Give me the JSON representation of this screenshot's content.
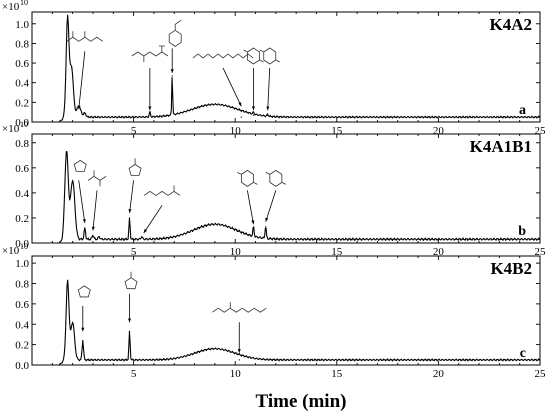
{
  "chart_data": [
    {
      "type": "line",
      "panel_name": "K4A2",
      "panel_letter": "a",
      "y_exponent_label": "×10",
      "y_exponent": "10",
      "xlim": [
        0,
        25
      ],
      "ylim": [
        0,
        1.12
      ],
      "x_ticks": [
        5,
        10,
        15,
        20,
        25
      ],
      "y_ticks": [
        "0.0",
        "0.2",
        "0.4",
        "0.6",
        "0.8",
        "1.0"
      ],
      "y_tick_values": [
        0.0,
        0.2,
        0.4,
        0.6,
        0.8,
        1.0
      ],
      "baseline": 0.05,
      "hump": {
        "center": 9.0,
        "width": 1.6,
        "height": 0.13
      },
      "peaks": [
        {
          "x": 1.75,
          "y": 1.05,
          "w": 0.1
        },
        {
          "x": 1.95,
          "y": 0.55,
          "w": 0.12
        },
        {
          "x": 2.3,
          "y": 0.16,
          "w": 0.15
        },
        {
          "x": 2.6,
          "y": 0.09,
          "w": 0.08
        },
        {
          "x": 3.3,
          "y": 0.05,
          "w": 0.3
        },
        {
          "x": 5.8,
          "y": 0.1,
          "w": 0.04
        },
        {
          "x": 6.9,
          "y": 0.47,
          "w": 0.03
        },
        {
          "x": 10.3,
          "y": 0.05,
          "w": 0.05
        },
        {
          "x": 10.9,
          "y": 0.07,
          "w": 0.04
        },
        {
          "x": 11.6,
          "y": 0.07,
          "w": 0.04
        }
      ],
      "annotations": [
        {
          "mol": "diketone",
          "arrow_from": [
            2.6,
            0.72
          ],
          "arrow_to": [
            2.3,
            0.13
          ]
        },
        {
          "mol": "branched-alkene",
          "arrow_from": [
            5.8,
            0.55
          ],
          "arrow_to": [
            5.8,
            0.12
          ]
        },
        {
          "mol": "styrene",
          "arrow_from": [
            6.9,
            0.75
          ],
          "arrow_to": [
            6.9,
            0.5
          ]
        },
        {
          "mol": "long-chain",
          "arrow_from": [
            9.4,
            0.55
          ],
          "arrow_to": [
            10.3,
            0.16
          ]
        },
        {
          "mol": "lactide",
          "arrow_from": [
            10.9,
            0.55
          ],
          "arrow_to": [
            10.9,
            0.12
          ]
        },
        {
          "mol": "lactide",
          "arrow_from": [
            11.7,
            0.55
          ],
          "arrow_to": [
            11.6,
            0.12
          ]
        }
      ]
    },
    {
      "type": "line",
      "panel_name": "K4A1B1",
      "panel_letter": "b",
      "y_exponent_label": "×10",
      "y_exponent": "10",
      "xlim": [
        0,
        25
      ],
      "ylim": [
        0,
        0.87
      ],
      "x_ticks": [
        5,
        10,
        15,
        20,
        25
      ],
      "y_ticks": [
        "0.0",
        "0.2",
        "0.4",
        "0.6",
        "0.8"
      ],
      "y_tick_values": [
        0.0,
        0.2,
        0.4,
        0.6,
        0.8
      ],
      "baseline": 0.03,
      "hump": {
        "center": 9.0,
        "width": 1.5,
        "height": 0.12
      },
      "peaks": [
        {
          "x": 1.7,
          "y": 0.73,
          "w": 0.12
        },
        {
          "x": 2.0,
          "y": 0.5,
          "w": 0.15
        },
        {
          "x": 2.6,
          "y": 0.12,
          "w": 0.05
        },
        {
          "x": 3.0,
          "y": 0.06,
          "w": 0.06
        },
        {
          "x": 3.3,
          "y": 0.05,
          "w": 0.06
        },
        {
          "x": 4.8,
          "y": 0.2,
          "w": 0.04
        },
        {
          "x": 5.4,
          "y": 0.05,
          "w": 0.05
        },
        {
          "x": 10.9,
          "y": 0.11,
          "w": 0.04
        },
        {
          "x": 11.5,
          "y": 0.13,
          "w": 0.04
        }
      ],
      "annotations": [
        {
          "mol": "thf-ring",
          "arrow_from": [
            2.3,
            0.5
          ],
          "arrow_to": [
            2.6,
            0.16
          ]
        },
        {
          "mol": "hydroxy-acid",
          "arrow_from": [
            3.2,
            0.42
          ],
          "arrow_to": [
            3.0,
            0.1
          ]
        },
        {
          "mol": "cyclopentanone",
          "arrow_from": [
            5.0,
            0.5
          ],
          "arrow_to": [
            4.8,
            0.24
          ]
        },
        {
          "mol": "nitrile-acrylate",
          "arrow_from": [
            6.4,
            0.3
          ],
          "arrow_to": [
            5.5,
            0.08
          ]
        },
        {
          "mol": "lactide",
          "arrow_from": [
            10.6,
            0.42
          ],
          "arrow_to": [
            10.9,
            0.15
          ]
        },
        {
          "mol": "lactide",
          "arrow_from": [
            12.0,
            0.42
          ],
          "arrow_to": [
            11.5,
            0.17
          ]
        }
      ]
    },
    {
      "type": "line",
      "panel_name": "K4B2",
      "panel_letter": "c",
      "y_exponent_label": "×10",
      "y_exponent": "10",
      "xlim": [
        0,
        25
      ],
      "ylim": [
        0,
        1.07
      ],
      "x_ticks": [
        5,
        10,
        15,
        20,
        25
      ],
      "x_tick_labels": [
        "5",
        "10",
        "15",
        "20",
        "25"
      ],
      "y_ticks": [
        "0.0",
        "0.2",
        "0.4",
        "0.6",
        "0.8",
        "1.0"
      ],
      "y_tick_values": [
        0.0,
        0.2,
        0.4,
        0.6,
        0.8,
        1.0
      ],
      "baseline": 0.05,
      "hump": {
        "center": 9.0,
        "width": 1.4,
        "height": 0.11
      },
      "peaks": [
        {
          "x": 1.75,
          "y": 0.82,
          "w": 0.1
        },
        {
          "x": 2.0,
          "y": 0.42,
          "w": 0.13
        },
        {
          "x": 2.5,
          "y": 0.24,
          "w": 0.05
        },
        {
          "x": 4.8,
          "y": 0.33,
          "w": 0.04
        },
        {
          "x": 10.2,
          "y": 0.05,
          "w": 0.05
        }
      ],
      "annotations": [
        {
          "mol": "thf-ring",
          "arrow_from": [
            2.5,
            0.58
          ],
          "arrow_to": [
            2.5,
            0.33
          ]
        },
        {
          "mol": "cyclopentanone",
          "arrow_from": [
            4.8,
            0.7
          ],
          "arrow_to": [
            4.8,
            0.42
          ]
        },
        {
          "mol": "ester",
          "arrow_from": [
            10.2,
            0.42
          ],
          "arrow_to": [
            10.2,
            0.12
          ]
        }
      ]
    }
  ],
  "x_axis_title": "Time (min)"
}
